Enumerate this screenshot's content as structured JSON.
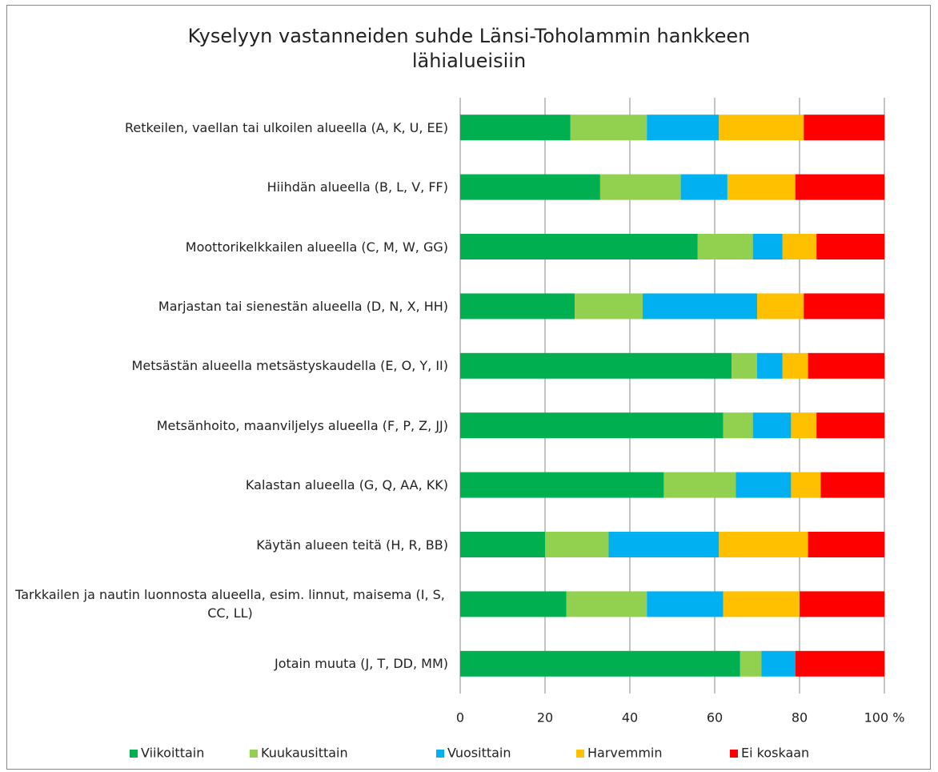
{
  "chart_data": {
    "type": "stacked_barh",
    "title": "Kyselyyn vastanneiden suhde Länsi-Toholammin hankkeen lähialueisiin",
    "categories": [
      "Retkeilen, vaellan tai ulkoilen alueella (A, K, U, EE)",
      "Hiihdän alueella (B, L, V, FF)",
      "Moottorikelkkailen alueella (C, M, W, GG)",
      "Marjastan tai sienestän alueella (D, N, X, HH)",
      "Metsästän alueella metsästyskaudella (E, O, Y, II)",
      "Metsänhoito, maanviljelys alueella (F, P, Z, JJ)",
      "Kalastan alueella (G, Q, AA, KK)",
      "Käytän alueen teitä (H, R, BB)",
      "Tarkkailen ja nautin luonnosta alueella, esim. linnut, maisema (I, S, CC, LL)",
      "Jotain muuta (J, T, DD, MM)"
    ],
    "series": [
      {
        "name": "Viikoittain",
        "color": "#00b050",
        "values": [
          26,
          33,
          56,
          27,
          64,
          62,
          48,
          20,
          25,
          66
        ]
      },
      {
        "name": "Kuukausittain",
        "color": "#92d050",
        "values": [
          18,
          19,
          13,
          16,
          6,
          7,
          17,
          15,
          19,
          5
        ]
      },
      {
        "name": "Vuosittain",
        "color": "#00b0f0",
        "values": [
          17,
          11,
          7,
          27,
          6,
          9,
          13,
          26,
          18,
          8
        ]
      },
      {
        "name": "Harvemmin",
        "color": "#ffc000",
        "values": [
          20,
          16,
          8,
          11,
          6,
          6,
          7,
          21,
          18,
          0
        ]
      },
      {
        "name": "Ei koskaan",
        "color": "#ff0000",
        "values": [
          19,
          21,
          16,
          19,
          18,
          16,
          15,
          18,
          20,
          21
        ]
      }
    ],
    "xlim": [
      0,
      100
    ],
    "xticks": [
      0,
      20,
      40,
      60,
      80,
      {
        "value": 100,
        "label": "100 %"
      }
    ],
    "grid": true,
    "legend": "bottom"
  }
}
